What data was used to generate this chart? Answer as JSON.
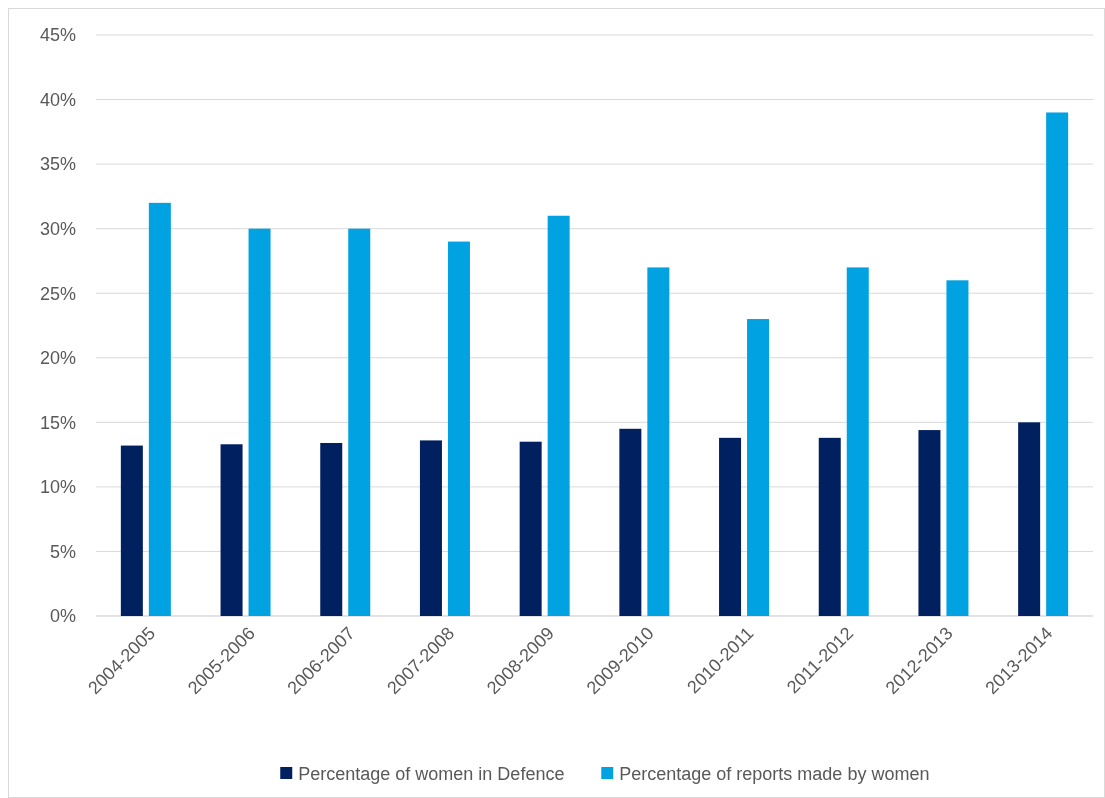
{
  "chart_data": {
    "type": "bar",
    "categories": [
      "2004-2005",
      "2005-2006",
      "2006-2007",
      "2007-2008",
      "2008-2009",
      "2009-2010",
      "2010-2011",
      "2011-2012",
      "2012-2013",
      "2013-2014"
    ],
    "series": [
      {
        "name": "Percentage of women in Defence",
        "color": "#002060",
        "values": [
          13.2,
          13.3,
          13.4,
          13.6,
          13.5,
          14.5,
          13.8,
          13.8,
          14.4,
          15.0
        ]
      },
      {
        "name": "Percentage of reports made by women",
        "color": "#00a2e1",
        "values": [
          32,
          30,
          30,
          29,
          31,
          27,
          23,
          27,
          26,
          39
        ]
      }
    ],
    "ylim": [
      0,
      45
    ],
    "yticks": [
      {
        "value": 0,
        "label": "0%"
      },
      {
        "value": 5,
        "label": "5%"
      },
      {
        "value": 10,
        "label": "10%"
      },
      {
        "value": 15,
        "label": "15%"
      },
      {
        "value": 20,
        "label": "20%"
      },
      {
        "value": 25,
        "label": "25%"
      },
      {
        "value": 30,
        "label": "30%"
      },
      {
        "value": 35,
        "label": "35%"
      },
      {
        "value": 40,
        "label": "40%"
      },
      {
        "value": 45,
        "label": "45%"
      }
    ],
    "grid": "y",
    "legend": "bottom"
  }
}
